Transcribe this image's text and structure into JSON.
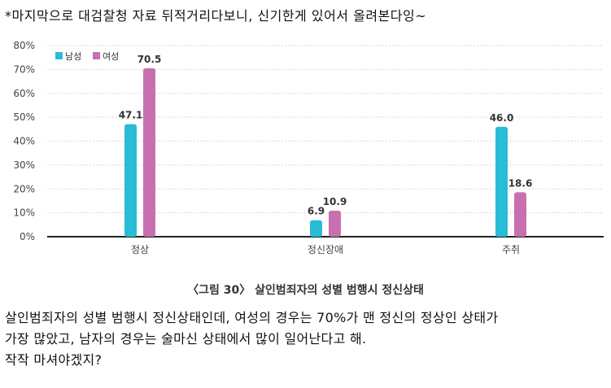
{
  "post": {
    "intro": "*마지막으로 대검찰청 자료 뒤적거리다보니, 신기한게 있어서 올려본다잉~",
    "body_lines": [
      "살인범죄자의 성별 범행시 정신상태인데, 여성의 경우는 70%가 맨 정신의 정상인 상태가",
      "가장 많았고, 남자의 경우는 술마신 상태에서 많이 일어난다고 해.",
      "작작 마셔야겠지?"
    ]
  },
  "caption": "〈그림 30〉 살인범죄자의 성별 범행시 정신상태",
  "colors": {
    "male": "#29bcd6",
    "female": "#c86fb0",
    "axis": "#222222",
    "grid": "#d9d9d9"
  },
  "chart_data": {
    "type": "bar",
    "categories": [
      "정상",
      "정신장애",
      "주취"
    ],
    "series": [
      {
        "name": "남성",
        "values": [
          47.1,
          6.9,
          46.0
        ],
        "labels": [
          "47.1",
          "6.9",
          "46.0"
        ]
      },
      {
        "name": "여성",
        "values": [
          70.5,
          10.9,
          18.6
        ],
        "labels": [
          "70.5",
          "10.9",
          "18.6"
        ]
      }
    ],
    "ylim": [
      0,
      80
    ],
    "yticks": [
      "0%",
      "10%",
      "20%",
      "30%",
      "40%",
      "50%",
      "60%",
      "70%",
      "80%"
    ],
    "grid": true,
    "legend": "top-left"
  }
}
